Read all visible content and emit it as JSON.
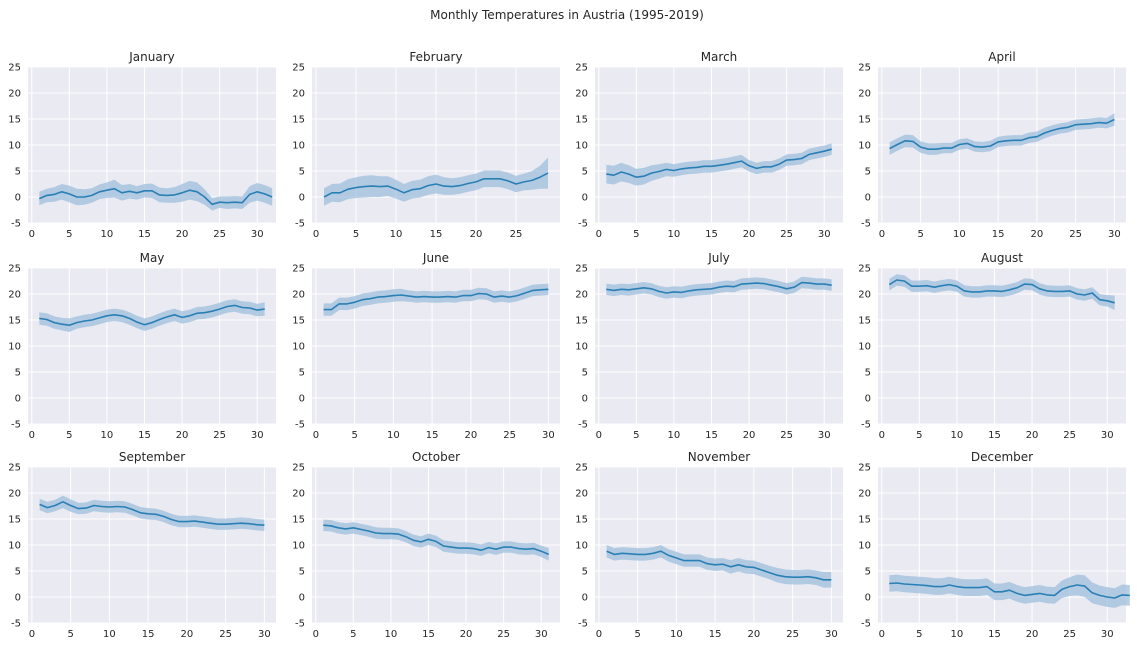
{
  "figure": {
    "title": "Monthly Temperatures in Austria (1995-2019)"
  },
  "chart_data": {
    "type": "line",
    "layout": "small-multiples 3x4",
    "grid": true,
    "background_color": "#EAEAF2",
    "grid_color": "#FFFFFF",
    "line_color": "#2A7FB5",
    "band_color": "#9DBFDC",
    "ylim": [
      -5,
      25
    ],
    "yticks": [
      -5,
      0,
      5,
      10,
      15,
      20,
      25
    ],
    "panels": [
      {
        "title": "January",
        "xticks": [
          0,
          5,
          10,
          15,
          20,
          25,
          30
        ],
        "xlim": [
          -0.5,
          32.5
        ],
        "y": [
          -0.3,
          0.3,
          0.5,
          1.0,
          0.6,
          0.0,
          0.0,
          0.3,
          1.0,
          1.3,
          1.6,
          0.8,
          1.1,
          0.8,
          1.2,
          1.2,
          0.4,
          0.3,
          0.4,
          0.8,
          1.3,
          1.0,
          0.0,
          -1.4,
          -1.0,
          -1.1,
          -1.0,
          -1.1,
          0.5,
          1.0,
          0.6,
          0.0
        ],
        "band": [
          1.3,
          1.3,
          1.4,
          1.5,
          1.6,
          1.6,
          1.5,
          1.4,
          1.4,
          1.5,
          1.7,
          1.5,
          1.4,
          1.3,
          1.3,
          1.4,
          1.4,
          1.4,
          1.5,
          1.7,
          1.8,
          1.8,
          1.5,
          1.2,
          1.1,
          1.2,
          1.2,
          1.2,
          1.6,
          1.7,
          1.7,
          1.7
        ]
      },
      {
        "title": "February",
        "xticks": [
          0,
          5,
          10,
          15,
          20,
          25
        ],
        "xlim": [
          -0.5,
          30.5
        ],
        "y": [
          0.0,
          0.8,
          0.8,
          1.5,
          1.8,
          2.0,
          2.1,
          2.0,
          2.1,
          1.5,
          0.8,
          1.4,
          1.6,
          2.2,
          2.5,
          2.1,
          2.0,
          2.2,
          2.6,
          2.9,
          3.5,
          3.5,
          3.5,
          3.1,
          2.5,
          2.9,
          3.2,
          3.8,
          4.6
        ],
        "band": [
          1.7,
          1.7,
          1.8,
          1.9,
          2.0,
          2.1,
          2.1,
          2.0,
          1.9,
          1.8,
          1.7,
          1.7,
          1.7,
          1.8,
          1.8,
          1.7,
          1.6,
          1.6,
          1.6,
          1.6,
          1.6,
          1.6,
          1.6,
          1.6,
          1.6,
          1.6,
          1.8,
          2.2,
          3.0
        ]
      },
      {
        "title": "March",
        "xticks": [
          0,
          5,
          10,
          15,
          20,
          25,
          30
        ],
        "xlim": [
          -0.5,
          32.5
        ],
        "y": [
          4.4,
          4.2,
          4.8,
          4.4,
          3.8,
          4.0,
          4.6,
          4.9,
          5.3,
          5.1,
          5.4,
          5.6,
          5.7,
          5.9,
          5.9,
          6.1,
          6.3,
          6.6,
          6.9,
          6.0,
          5.5,
          5.8,
          5.8,
          6.3,
          7.1,
          7.2,
          7.4,
          8.2,
          8.5,
          8.8,
          9.2
        ],
        "band": [
          1.8,
          1.8,
          1.8,
          1.7,
          1.6,
          1.6,
          1.5,
          1.4,
          1.3,
          1.2,
          1.2,
          1.2,
          1.2,
          1.2,
          1.2,
          1.2,
          1.2,
          1.2,
          1.2,
          1.1,
          1.1,
          1.1,
          1.1,
          1.1,
          1.1,
          1.1,
          1.1,
          1.1,
          1.1,
          1.1,
          1.1
        ]
      },
      {
        "title": "April",
        "xticks": [
          0,
          5,
          10,
          15,
          20,
          25,
          30
        ],
        "xlim": [
          -0.5,
          31.5
        ],
        "y": [
          9.3,
          10.1,
          10.8,
          10.7,
          9.6,
          9.2,
          9.2,
          9.4,
          9.4,
          10.1,
          10.3,
          9.7,
          9.6,
          9.8,
          10.6,
          10.8,
          10.9,
          10.9,
          11.4,
          11.6,
          12.3,
          12.8,
          13.2,
          13.4,
          13.9,
          14.0,
          14.1,
          14.3,
          14.2,
          14.9
        ],
        "band": [
          1.2,
          1.2,
          1.2,
          1.2,
          1.1,
          1.1,
          1.1,
          1.0,
          1.0,
          1.0,
          1.0,
          1.0,
          1.0,
          1.0,
          1.0,
          1.0,
          1.0,
          1.0,
          1.0,
          1.0,
          1.0,
          1.0,
          1.0,
          1.0,
          1.0,
          1.0,
          1.0,
          1.0,
          1.0,
          1.2
        ]
      },
      {
        "title": "May",
        "xticks": [
          0,
          5,
          10,
          15,
          20,
          25,
          30
        ],
        "xlim": [
          -0.5,
          32.5
        ],
        "y": [
          15.3,
          15.1,
          14.5,
          14.2,
          14.0,
          14.5,
          14.8,
          15.0,
          15.4,
          15.8,
          16.0,
          15.8,
          15.3,
          14.6,
          14.1,
          14.5,
          15.1,
          15.6,
          16.0,
          15.5,
          15.8,
          16.3,
          16.4,
          16.7,
          17.1,
          17.6,
          17.8,
          17.4,
          17.3,
          16.9,
          17.1
        ],
        "band": [
          1.2,
          1.2,
          1.2,
          1.2,
          1.3,
          1.2,
          1.2,
          1.2,
          1.2,
          1.2,
          1.2,
          1.2,
          1.2,
          1.2,
          1.2,
          1.2,
          1.2,
          1.2,
          1.2,
          1.2,
          1.2,
          1.2,
          1.2,
          1.2,
          1.2,
          1.2,
          1.2,
          1.2,
          1.2,
          1.2,
          1.3
        ]
      },
      {
        "title": "June",
        "xticks": [
          0,
          5,
          10,
          15,
          20,
          25,
          30
        ],
        "xlim": [
          -0.5,
          31.5
        ],
        "y": [
          17.0,
          17.0,
          18.1,
          18.1,
          18.4,
          18.9,
          19.1,
          19.4,
          19.5,
          19.7,
          19.8,
          19.6,
          19.4,
          19.5,
          19.4,
          19.4,
          19.5,
          19.4,
          19.7,
          19.7,
          20.1,
          20.0,
          19.4,
          19.6,
          19.4,
          19.7,
          20.2,
          20.7,
          20.8,
          20.9
        ],
        "band": [
          1.2,
          1.2,
          1.2,
          1.2,
          1.2,
          1.2,
          1.2,
          1.2,
          1.2,
          1.2,
          1.2,
          1.1,
          1.1,
          1.1,
          1.1,
          1.1,
          1.1,
          1.1,
          1.1,
          1.1,
          1.1,
          1.1,
          1.1,
          1.1,
          1.1,
          1.1,
          1.1,
          1.1,
          1.1,
          1.1
        ]
      },
      {
        "title": "July",
        "xticks": [
          0,
          5,
          10,
          15,
          20,
          25,
          30
        ],
        "xlim": [
          -0.5,
          32.5
        ],
        "y": [
          20.9,
          20.7,
          20.9,
          20.8,
          21.0,
          21.2,
          21.0,
          20.5,
          20.2,
          20.4,
          20.3,
          20.6,
          20.8,
          20.9,
          21.0,
          21.3,
          21.5,
          21.4,
          21.9,
          22.0,
          22.1,
          22.0,
          21.7,
          21.4,
          21.0,
          21.3,
          22.2,
          22.1,
          21.9,
          21.9,
          21.7
        ],
        "band": [
          1.1,
          1.1,
          1.1,
          1.1,
          1.1,
          1.1,
          1.1,
          1.1,
          1.1,
          1.1,
          1.1,
          1.1,
          1.1,
          1.1,
          1.1,
          1.1,
          1.1,
          1.1,
          1.1,
          1.1,
          1.1,
          1.1,
          1.1,
          1.1,
          1.1,
          1.1,
          1.1,
          1.1,
          1.1,
          1.1,
          1.1
        ]
      },
      {
        "title": "August",
        "xticks": [
          0,
          5,
          10,
          15,
          20,
          25,
          30
        ],
        "xlim": [
          -0.5,
          32.5
        ],
        "y": [
          21.8,
          22.7,
          22.5,
          21.5,
          21.5,
          21.6,
          21.3,
          21.6,
          21.8,
          21.5,
          20.6,
          20.4,
          20.4,
          20.6,
          20.6,
          20.5,
          20.8,
          21.2,
          21.9,
          21.8,
          21.0,
          20.6,
          20.5,
          20.5,
          20.6,
          20.0,
          19.8,
          20.2,
          18.9,
          18.7,
          18.3
        ],
        "band": [
          1.1,
          1.1,
          1.1,
          1.1,
          1.1,
          1.1,
          1.1,
          1.1,
          1.1,
          1.1,
          1.1,
          1.1,
          1.1,
          1.1,
          1.1,
          1.1,
          1.1,
          1.1,
          1.1,
          1.1,
          1.1,
          1.1,
          1.1,
          1.1,
          1.1,
          1.1,
          1.1,
          1.1,
          1.1,
          1.1,
          1.4
        ]
      },
      {
        "title": "September",
        "xticks": [
          0,
          5,
          10,
          15,
          20,
          25,
          30
        ],
        "xlim": [
          -0.5,
          31.5
        ],
        "y": [
          17.8,
          17.2,
          17.6,
          18.3,
          17.6,
          17.0,
          17.1,
          17.6,
          17.4,
          17.3,
          17.4,
          17.3,
          16.8,
          16.2,
          16.0,
          15.9,
          15.5,
          14.9,
          14.5,
          14.5,
          14.6,
          14.4,
          14.2,
          14.0,
          14.0,
          14.1,
          14.2,
          14.1,
          13.9,
          13.8
        ],
        "band": [
          1.1,
          1.1,
          1.1,
          1.2,
          1.2,
          1.1,
          1.1,
          1.1,
          1.1,
          1.1,
          1.1,
          1.1,
          1.1,
          1.1,
          1.1,
          1.1,
          1.1,
          1.1,
          1.1,
          1.1,
          1.1,
          1.1,
          1.1,
          1.1,
          1.1,
          1.1,
          1.1,
          1.1,
          1.1,
          1.1
        ]
      },
      {
        "title": "October",
        "xticks": [
          0,
          5,
          10,
          15,
          20,
          25,
          30
        ],
        "xlim": [
          -0.5,
          32.5
        ],
        "y": [
          13.8,
          13.7,
          13.3,
          13.1,
          13.3,
          13.0,
          12.7,
          12.3,
          12.2,
          12.2,
          12.1,
          11.6,
          10.9,
          10.6,
          11.1,
          10.7,
          9.8,
          9.6,
          9.4,
          9.4,
          9.3,
          9.0,
          9.5,
          9.2,
          9.6,
          9.6,
          9.3,
          9.2,
          9.3,
          8.8,
          8.2
        ],
        "band": [
          1.1,
          1.1,
          1.1,
          1.1,
          1.1,
          1.1,
          1.1,
          1.1,
          1.1,
          1.1,
          1.1,
          1.1,
          1.1,
          1.1,
          1.1,
          1.1,
          1.1,
          1.1,
          1.1,
          1.1,
          1.1,
          1.1,
          1.1,
          1.1,
          1.1,
          1.1,
          1.1,
          1.1,
          1.1,
          1.1,
          1.2
        ]
      },
      {
        "title": "November",
        "xticks": [
          0,
          5,
          10,
          15,
          20,
          25,
          30
        ],
        "xlim": [
          -0.5,
          31.5
        ],
        "y": [
          8.8,
          8.2,
          8.4,
          8.3,
          8.2,
          8.2,
          8.4,
          8.8,
          8.0,
          7.5,
          7.0,
          7.0,
          7.0,
          6.4,
          6.2,
          6.3,
          5.8,
          6.2,
          5.8,
          5.7,
          5.2,
          4.7,
          4.2,
          3.9,
          3.8,
          3.8,
          3.9,
          3.7,
          3.3,
          3.3
        ],
        "band": [
          1.2,
          1.2,
          1.2,
          1.2,
          1.2,
          1.2,
          1.2,
          1.2,
          1.2,
          1.2,
          1.2,
          1.2,
          1.2,
          1.2,
          1.2,
          1.2,
          1.3,
          1.3,
          1.3,
          1.3,
          1.3,
          1.3,
          1.4,
          1.4,
          1.4,
          1.4,
          1.4,
          1.4,
          1.5,
          1.5
        ]
      },
      {
        "title": "December",
        "xticks": [
          0,
          5,
          10,
          15,
          20,
          25,
          30
        ],
        "xlim": [
          -0.5,
          32.5
        ],
        "y": [
          2.6,
          2.7,
          2.5,
          2.4,
          2.3,
          2.2,
          2.0,
          2.0,
          2.3,
          2.0,
          1.8,
          1.8,
          1.8,
          2.0,
          1.0,
          1.0,
          1.3,
          0.7,
          0.3,
          0.5,
          0.7,
          0.4,
          0.3,
          1.5,
          2.0,
          2.3,
          2.1,
          0.8,
          0.3,
          0.0,
          -0.2,
          0.4,
          0.3
        ],
        "band": [
          1.6,
          1.6,
          1.6,
          1.6,
          1.6,
          1.6,
          1.6,
          1.6,
          1.6,
          1.6,
          1.6,
          1.6,
          1.6,
          1.6,
          1.6,
          1.6,
          1.6,
          1.6,
          1.6,
          1.6,
          1.6,
          1.6,
          1.6,
          1.7,
          1.8,
          2.0,
          2.1,
          2.0,
          1.9,
          1.9,
          1.9,
          2.0,
          2.0
        ]
      }
    ]
  }
}
